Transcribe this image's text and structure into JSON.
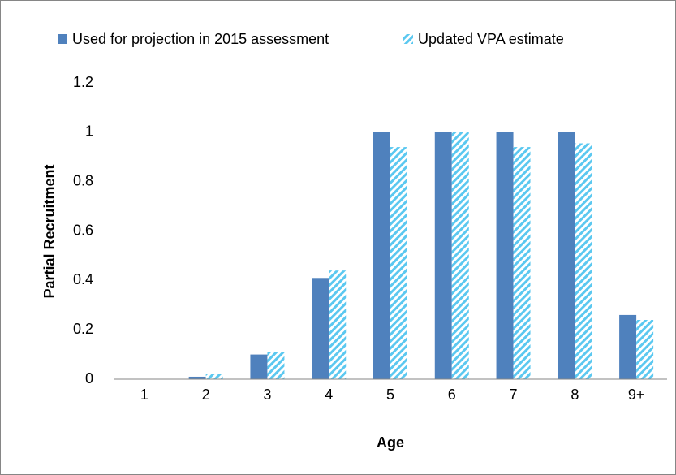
{
  "chart_data": {
    "type": "bar",
    "y_label": "Partial Recruitment",
    "x_label": "Age",
    "categories": [
      "1",
      "2",
      "3",
      "4",
      "5",
      "6",
      "7",
      "8",
      "9+"
    ],
    "series": [
      {
        "name": "Used for projection in 2015 assessment",
        "color": "#4f81bd",
        "values": [
          0,
          0.01,
          0.1,
          0.41,
          1,
          1,
          1,
          1,
          0.26
        ]
      },
      {
        "name": "Updated VPA estimate",
        "color": "#5bc8f0",
        "pattern": "diagonal-stripes",
        "values": [
          0,
          0.02,
          0.11,
          0.44,
          0.94,
          1,
          0.94,
          0.955,
          0.24
        ]
      }
    ],
    "ylim": [
      0,
      1.2
    ],
    "yticks": [
      0,
      0.2,
      0.4,
      0.6,
      0.8,
      1,
      1.2
    ],
    "grid": false,
    "legend": "top"
  }
}
